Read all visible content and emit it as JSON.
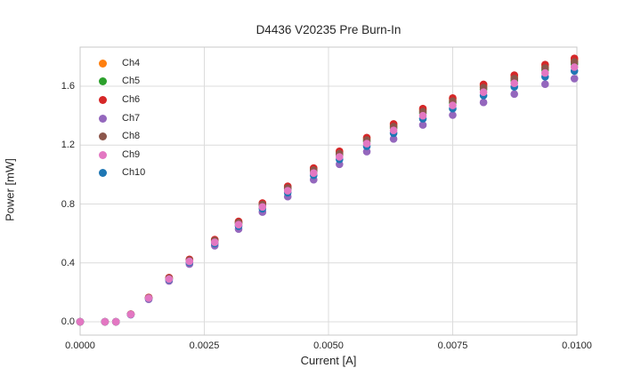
{
  "chart_data": {
    "type": "scatter",
    "title": "D4436 V20235 Pre Burn-In",
    "xlabel": "Current [A]",
    "ylabel": "Power [mW]",
    "xlim": [
      0.0,
      0.01
    ],
    "ylim": [
      -0.0906,
      1.8659
    ],
    "grid": true,
    "legend_position": "upper left",
    "grid_color": "#dcdcdc",
    "spine_color": "#c9c9c9",
    "marker_radius": 4.3,
    "xticks": {
      "values": [
        0.0,
        0.0025,
        0.005,
        0.0075,
        0.01
      ],
      "labels": [
        "0.0000",
        "0.0025",
        "0.0050",
        "0.0075",
        "0.0100"
      ]
    },
    "yticks": {
      "values": [
        0.0,
        0.4,
        0.8,
        1.2,
        1.6
      ],
      "labels": [
        "0.0",
        "0.4",
        "0.8",
        "1.2",
        "1.6"
      ]
    },
    "x": [
      0.0,
      0.0005,
      0.00072,
      0.00102,
      0.00138,
      0.00179,
      0.0022,
      0.00271,
      0.00319,
      0.00367,
      0.00418,
      0.0047,
      0.00522,
      0.00577,
      0.00631,
      0.0069,
      0.0075,
      0.00812,
      0.00874,
      0.00936,
      0.00995
    ],
    "series": [
      {
        "name": "Ch4",
        "color": "#ff7f0e",
        "values": [
          0.0,
          0.0,
          0.0,
          0.051,
          0.164,
          0.298,
          0.421,
          0.555,
          0.678,
          0.802,
          0.915,
          1.038,
          1.151,
          1.244,
          1.336,
          1.439,
          1.511,
          1.604,
          1.665,
          1.737,
          1.778
        ]
      },
      {
        "name": "Ch5",
        "color": "#2ca02c",
        "values": [
          0.0,
          0.0,
          0.0,
          0.051,
          0.162,
          0.293,
          0.415,
          0.546,
          0.668,
          0.789,
          0.901,
          1.022,
          1.133,
          1.225,
          1.316,
          1.417,
          1.488,
          1.579,
          1.639,
          1.71,
          1.751
        ]
      },
      {
        "name": "Ch6",
        "color": "#d62728",
        "values": [
          0.0,
          0.0,
          0.0,
          0.052,
          0.165,
          0.3,
          0.424,
          0.558,
          0.682,
          0.807,
          0.92,
          1.044,
          1.158,
          1.251,
          1.344,
          1.448,
          1.52,
          1.613,
          1.675,
          1.747,
          1.789
        ]
      },
      {
        "name": "Ch7",
        "color": "#9467bd",
        "values": [
          0.0,
          0.0,
          0.0,
          0.048,
          0.153,
          0.277,
          0.392,
          0.516,
          0.63,
          0.745,
          0.85,
          0.965,
          1.07,
          1.156,
          1.242,
          1.337,
          1.404,
          1.49,
          1.547,
          1.614,
          1.652
        ]
      },
      {
        "name": "Ch8",
        "color": "#8c564b",
        "values": [
          0.0,
          0.0,
          0.0,
          0.051,
          0.163,
          0.296,
          0.418,
          0.551,
          0.673,
          0.796,
          0.908,
          1.03,
          1.142,
          1.234,
          1.326,
          1.428,
          1.499,
          1.591,
          1.652,
          1.724,
          1.765
        ]
      },
      {
        "name": "Ch9",
        "color": "#e377c2",
        "values": [
          0.0,
          0.0,
          0.0,
          0.05,
          0.16,
          0.29,
          0.41,
          0.54,
          0.66,
          0.78,
          0.89,
          1.01,
          1.12,
          1.21,
          1.3,
          1.4,
          1.47,
          1.56,
          1.62,
          1.69,
          1.73
        ]
      },
      {
        "name": "Ch10",
        "color": "#1f77b4",
        "values": [
          0.0,
          0.0,
          0.0,
          0.049,
          0.158,
          0.286,
          0.404,
          0.532,
          0.65,
          0.768,
          0.877,
          0.995,
          1.103,
          1.192,
          1.281,
          1.379,
          1.448,
          1.537,
          1.596,
          1.665,
          1.704
        ]
      }
    ],
    "draw_order": [
      "Ch4",
      "Ch5",
      "Ch6",
      "Ch7",
      "Ch8",
      "Ch10",
      "Ch9"
    ]
  }
}
